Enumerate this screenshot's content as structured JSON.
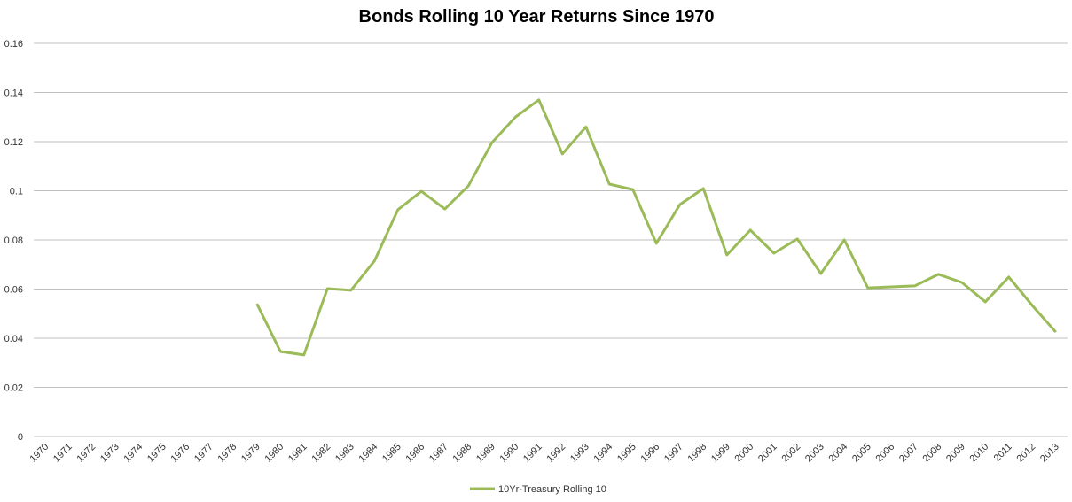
{
  "chart_data": {
    "type": "line",
    "title": "Bonds Rolling 10 Year Returns Since 1970",
    "categories": [
      "1970",
      "1971",
      "1972",
      "1973",
      "1974",
      "1975",
      "1976",
      "1977",
      "1978",
      "1979",
      "1980",
      "1981",
      "1982",
      "1983",
      "1984",
      "1985",
      "1986",
      "1987",
      "1988",
      "1989",
      "1990",
      "1991",
      "1992",
      "1993",
      "1994",
      "1995",
      "1996",
      "1997",
      "1998",
      "1999",
      "2000",
      "2001",
      "2002",
      "2003",
      "2004",
      "2005",
      "2006",
      "2007",
      "2008",
      "2009",
      "2010",
      "2011",
      "2012",
      "2013"
    ],
    "series": [
      {
        "name": "10Yr-Treasury Rolling 10",
        "color": "#9bbb59",
        "values": [
          null,
          null,
          null,
          null,
          null,
          null,
          null,
          null,
          null,
          0.054,
          0.0346,
          0.0332,
          0.0602,
          0.0595,
          0.0714,
          0.0923,
          0.0998,
          0.0926,
          0.102,
          0.1196,
          0.13,
          0.137,
          0.115,
          0.126,
          0.1027,
          0.1005,
          0.0786,
          0.0944,
          0.1009,
          0.0739,
          0.084,
          0.0746,
          0.0804,
          0.0663,
          0.08,
          0.0605,
          0.0609,
          0.0613,
          0.066,
          0.0627,
          0.0548,
          0.0649,
          0.0533,
          0.0425
        ]
      }
    ],
    "ylim": [
      0,
      0.16
    ],
    "yticks": [
      0,
      0.02,
      0.04,
      0.06,
      0.08,
      0.1,
      0.12,
      0.14,
      0.16
    ],
    "grid": true,
    "legend": "bottom"
  }
}
